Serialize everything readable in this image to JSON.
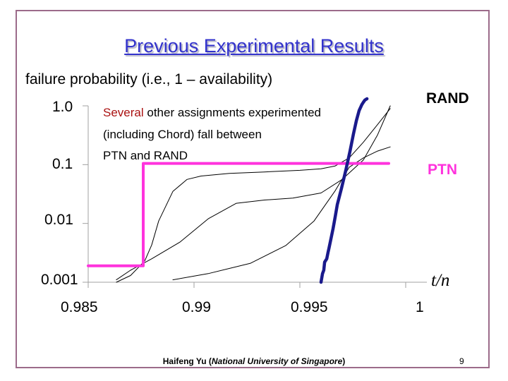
{
  "title": "Previous Experimental Results",
  "y_axis_label": "failure probability (i.e., 1 – availability)",
  "x_axis_var": "t/n",
  "annotation": {
    "prefix": "Several",
    "line1_rest": " other assignments experimented",
    "line2": "(including Chord) fall between",
    "line3": "PTN and RAND"
  },
  "footer": {
    "author": "Haifeng Yu (",
    "affiliation": "National University of Singapore",
    "close": ")",
    "page": "9"
  },
  "colors": {
    "title": "#3333cc",
    "rand": "#1a1a8c",
    "ptn": "#ff33dd",
    "other": "#000000",
    "frame": "#9c6b8a"
  },
  "chart_data": {
    "type": "line",
    "title": "Previous Experimental Results",
    "ylabel": "failure probability (i.e., 1 – availability)",
    "xlabel": "t/n",
    "x_scale": "linear",
    "y_scale": "log",
    "xlim": [
      0.985,
      1.0
    ],
    "ylim": [
      0.001,
      1.0
    ],
    "x_ticks": [
      0.985,
      0.99,
      0.995,
      1
    ],
    "x_tick_labels": [
      "0.985",
      "0.99",
      "0.995",
      "1"
    ],
    "y_ticks": [
      0.001,
      0.01,
      0.1,
      1.0
    ],
    "y_tick_labels": [
      "0.001",
      "0.01",
      "0.1",
      "1.0"
    ],
    "series": [
      {
        "name": "RAND",
        "label_on_chart": "RAND",
        "color": "#1a1a8c",
        "style": "thick",
        "x": [
          0.996,
          0.99607,
          0.99613,
          0.99617,
          0.99627,
          0.99633,
          0.99637,
          0.99647,
          0.99657,
          0.99667,
          0.99677,
          0.99697,
          0.99717,
          0.99737,
          0.99753,
          0.99767,
          0.9978,
          0.99793,
          0.998,
          0.99807,
          0.99817
        ],
        "y": [
          0.001,
          0.0014,
          0.0016,
          0.0022,
          0.0025,
          0.0032,
          0.0037,
          0.0055,
          0.0082,
          0.013,
          0.021,
          0.04,
          0.08,
          0.17,
          0.33,
          0.56,
          0.83,
          1.05,
          1.15,
          1.25,
          1.32
        ]
      },
      {
        "name": "PTN",
        "label_on_chart": "PTN",
        "color": "#ff33dd",
        "style": "thick",
        "x": [
          0.985,
          0.9876,
          0.9876,
          0.9992
        ],
        "y": [
          0.0019,
          0.0019,
          0.105,
          0.105
        ]
      },
      {
        "name": "",
        "color": "#000000",
        "style": "thin",
        "x": [
          0.98633,
          0.987,
          0.98767,
          0.988,
          0.98833,
          0.989,
          0.98967,
          0.99033,
          0.99167,
          0.99333,
          0.995,
          0.996,
          0.99667,
          0.99733,
          0.998,
          0.99867,
          0.99927
        ],
        "y": [
          0.001,
          0.0013,
          0.0023,
          0.0043,
          0.011,
          0.035,
          0.056,
          0.064,
          0.071,
          0.075,
          0.08,
          0.085,
          0.095,
          0.13,
          0.24,
          0.48,
          0.9
        ]
      },
      {
        "name": "",
        "color": "#000000",
        "style": "thin",
        "x": [
          0.98633,
          0.987,
          0.988,
          0.98933,
          0.99067,
          0.992,
          0.99333,
          0.99467,
          0.996,
          0.997,
          0.998,
          0.99867,
          0.99927
        ],
        "y": [
          0.0011,
          0.0016,
          0.0025,
          0.0048,
          0.012,
          0.022,
          0.025,
          0.027,
          0.033,
          0.056,
          0.12,
          0.32,
          1.0
        ]
      },
      {
        "name": "",
        "color": "#000000",
        "style": "thin",
        "x": [
          0.989,
          0.99067,
          0.99267,
          0.99433,
          0.99567,
          0.99667,
          0.99733,
          0.998,
          0.99867,
          0.99927
        ],
        "y": [
          0.0011,
          0.0014,
          0.0021,
          0.0042,
          0.011,
          0.036,
          0.09,
          0.13,
          0.17,
          0.2
        ]
      }
    ]
  }
}
